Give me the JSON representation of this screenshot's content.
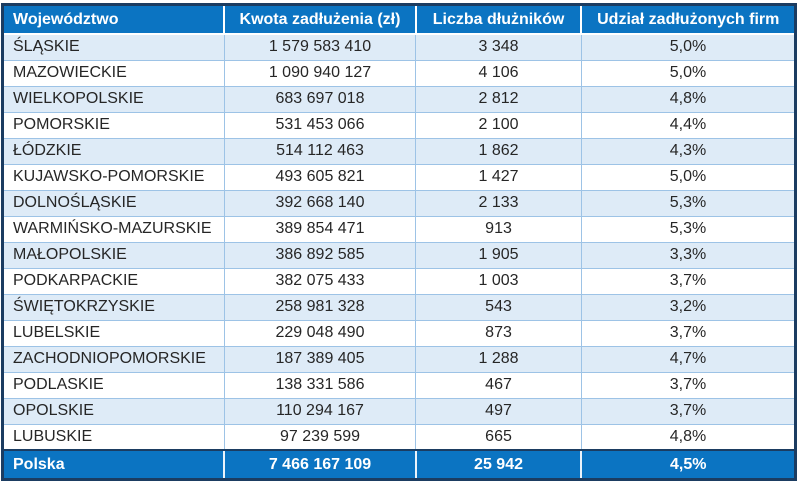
{
  "chart_data": {
    "type": "table",
    "title": "",
    "columns": [
      "Województwo",
      "Kwota zadłużenia (zł)",
      "Liczba dłużników",
      "Udział zadłużonych firm"
    ],
    "rows": [
      [
        "ŚLĄSKIE",
        "1 579 583 410",
        "3 348",
        "5,0%"
      ],
      [
        "MAZOWIECKIE",
        "1 090 940 127",
        "4 106",
        "5,0%"
      ],
      [
        "WIELKOPOLSKIE",
        "683 697 018",
        "2 812",
        "4,8%"
      ],
      [
        "POMORSKIE",
        "531 453 066",
        "2 100",
        "4,4%"
      ],
      [
        "ŁÓDZKIE",
        "514 112 463",
        "1 862",
        "4,3%"
      ],
      [
        "KUJAWSKO-POMORSKIE",
        "493 605 821",
        "1 427",
        "5,0%"
      ],
      [
        "DOLNOŚLĄSKIE",
        "392 668 140",
        "2 133",
        "5,3%"
      ],
      [
        "WARMIŃSKO-MAZURSKIE",
        "389 854 471",
        "913",
        "5,3%"
      ],
      [
        "MAŁOPOLSKIE",
        "386 892 585",
        "1 905",
        "3,3%"
      ],
      [
        "PODKARPACKIE",
        "382 075 433",
        "1 003",
        "3,7%"
      ],
      [
        "ŚWIĘTOKRZYSKIE",
        "258 981 328",
        "543",
        "3,2%"
      ],
      [
        "LUBELSKIE",
        "229 048 490",
        "873",
        "3,7%"
      ],
      [
        "ZACHODNIOPOMORSKIE",
        "187 389 405",
        "1 288",
        "4,7%"
      ],
      [
        "PODLASKIE",
        "138 331 586",
        "467",
        "3,7%"
      ],
      [
        "OPOLSKIE",
        "110 294 167",
        "497",
        "3,7%"
      ],
      [
        "LUBUSKIE",
        "97 239 599",
        "665",
        "4,8%"
      ]
    ],
    "total_row": [
      "Polska",
      "7 466 167 109",
      "25 942",
      "4,5%"
    ]
  },
  "colors": {
    "header_bg": "#0B74C2",
    "header_text": "#FFFFFF",
    "stripe_bg": "#DEEBF7",
    "row_bg": "#FFFFFF",
    "grid_line": "#9DC3E6",
    "outer_border": "#1B3C61",
    "body_text": "#262626"
  }
}
